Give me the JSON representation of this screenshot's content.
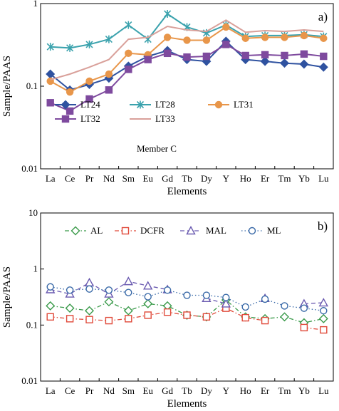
{
  "chart_data": [
    {
      "type": "line",
      "panel_label": "a)",
      "annotation": "Member C",
      "xlabel": "Elements",
      "ylabel": "Sample/PAAS",
      "yscale": "log",
      "ylim": [
        0.01,
        1
      ],
      "yticks": [
        "0.01",
        "0.1",
        "1"
      ],
      "categories": [
        "La",
        "Ce",
        "Pr",
        "Nd",
        "Sm",
        "Eu",
        "Gd",
        "Tb",
        "Dy",
        "Y",
        "Ho",
        "Er",
        "Tm",
        "Yb",
        "Lu"
      ],
      "legend_placement": "lower-center",
      "grid": false,
      "series": [
        {
          "name": "LT24",
          "color": "#2f52a0",
          "marker": "diamond-filled",
          "values": [
            0.14,
            0.09,
            0.105,
            0.125,
            0.175,
            0.23,
            0.27,
            0.21,
            0.2,
            0.35,
            0.21,
            0.2,
            0.19,
            0.185,
            0.17
          ]
        },
        {
          "name": "LT28",
          "color": "#3aa2ad",
          "marker": "asterisk",
          "values": [
            0.3,
            0.29,
            0.32,
            0.37,
            0.55,
            0.37,
            0.75,
            0.52,
            0.44,
            0.55,
            0.4,
            0.41,
            0.41,
            0.42,
            0.4
          ]
        },
        {
          "name": "LT31",
          "color": "#e8964a",
          "marker": "circle-filled",
          "values": [
            0.115,
            0.085,
            0.115,
            0.14,
            0.25,
            0.24,
            0.39,
            0.36,
            0.36,
            0.52,
            0.38,
            0.39,
            0.39,
            0.41,
            0.38
          ]
        },
        {
          "name": "LT32",
          "color": "#7e4a9e",
          "marker": "square-filled",
          "values": [
            0.063,
            0.05,
            0.07,
            0.09,
            0.16,
            0.21,
            0.25,
            0.225,
            0.23,
            0.32,
            0.235,
            0.24,
            0.235,
            0.245,
            0.23
          ]
        },
        {
          "name": "LT33",
          "color": "#d9a09a",
          "marker": "none",
          "values": [
            0.12,
            0.14,
            0.17,
            0.21,
            0.37,
            0.39,
            0.53,
            0.48,
            0.46,
            0.63,
            0.45,
            0.47,
            0.46,
            0.48,
            0.46
          ]
        }
      ]
    },
    {
      "type": "line",
      "panel_label": "b)",
      "xlabel": "Elements",
      "ylabel": "Sample/PAAS",
      "yscale": "log",
      "ylim": [
        0.01,
        10
      ],
      "yticks": [
        "0.01",
        "0.1",
        "1",
        "10"
      ],
      "categories": [
        "La",
        "Ce",
        "Pr",
        "Nd",
        "Sm",
        "Eu",
        "Gd",
        "Tb",
        "Dy",
        "Y",
        "Ho",
        "Er",
        "Tm",
        "Yb",
        "Lu"
      ],
      "legend_placement": "top",
      "grid": false,
      "series": [
        {
          "name": "AL",
          "color": "#3a9a4a",
          "marker": "diamond-open",
          "dash": "dashdot",
          "values": [
            0.22,
            0.2,
            0.18,
            0.26,
            0.18,
            0.24,
            0.22,
            0.15,
            0.14,
            0.28,
            0.14,
            0.13,
            0.14,
            0.11,
            0.13
          ]
        },
        {
          "name": "DCFR",
          "color": "#e04a3a",
          "marker": "square-open",
          "dash": "dashdot",
          "values": [
            0.14,
            0.13,
            0.125,
            0.12,
            0.13,
            0.15,
            0.17,
            0.15,
            0.14,
            0.2,
            0.135,
            0.12,
            null,
            0.09,
            0.082
          ]
        },
        {
          "name": "MAL",
          "color": "#6a5ab0",
          "marker": "triangle-open",
          "dash": "dash",
          "values": [
            0.43,
            0.36,
            0.57,
            0.36,
            0.6,
            0.5,
            0.43,
            null,
            0.3,
            0.24,
            null,
            0.3,
            null,
            0.24,
            0.25
          ]
        },
        {
          "name": "ML",
          "color": "#3a6aa8",
          "marker": "circle-open",
          "dash": "dot",
          "values": [
            0.48,
            0.42,
            0.44,
            0.42,
            0.38,
            0.32,
            0.42,
            0.34,
            0.34,
            0.31,
            0.21,
            0.29,
            0.22,
            0.2,
            0.18
          ]
        }
      ]
    }
  ]
}
